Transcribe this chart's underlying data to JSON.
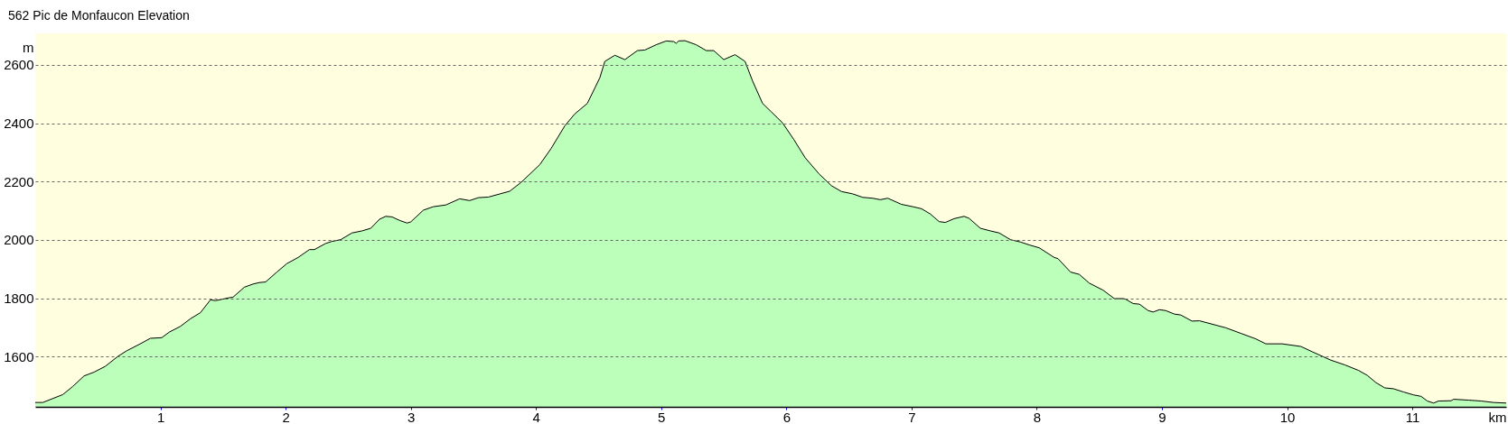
{
  "chart_data": {
    "type": "area",
    "title": "562 Pic de Monfaucon Elevation",
    "xlabel": "km",
    "ylabel": "m",
    "x": [
      0,
      0.06,
      0.22,
      0.3,
      0.39,
      0.47,
      0.56,
      0.66,
      0.73,
      0.83,
      0.92,
      1.01,
      1.07,
      1.16,
      1.24,
      1.32,
      1.4,
      1.44,
      1.55,
      1.58,
      1.67,
      1.74,
      1.79,
      1.84,
      1.93,
      2.01,
      2.1,
      2.19,
      2.23,
      2.32,
      2.37,
      2.44,
      2.53,
      2.61,
      2.68,
      2.75,
      2.8,
      2.85,
      2.91,
      2.97,
      3.0,
      3.1,
      3.18,
      3.28,
      3.39,
      3.47,
      3.54,
      3.62,
      3.79,
      3.88,
      4.03,
      4.12,
      4.23,
      4.31,
      4.41,
      4.51,
      4.55,
      4.63,
      4.71,
      4.81,
      4.87,
      4.96,
      5.04,
      5.1,
      5.12,
      5.14,
      5.19,
      5.28,
      5.36,
      5.42,
      5.5,
      5.59,
      5.67,
      5.73,
      5.81,
      5.88,
      5.97,
      6.06,
      6.15,
      6.26,
      6.36,
      6.44,
      6.53,
      6.61,
      6.69,
      6.75,
      6.81,
      6.92,
      7.01,
      7.08,
      7.15,
      7.22,
      7.27,
      7.34,
      7.42,
      7.46,
      7.55,
      7.63,
      7.7,
      7.79,
      7.87,
      7.94,
      8.02,
      8.14,
      8.17,
      8.27,
      8.34,
      8.42,
      8.53,
      8.62,
      8.69,
      8.71,
      8.77,
      8.82,
      8.89,
      8.93,
      8.98,
      9.03,
      9.1,
      9.15,
      9.24,
      9.3,
      9.44,
      9.51,
      9.63,
      9.75,
      9.83,
      9.96,
      10.11,
      10.2,
      10.35,
      10.46,
      10.57,
      10.64,
      10.71,
      10.78,
      10.85,
      10.93,
      11.01,
      11.07,
      11.12,
      11.17,
      11.21,
      11.31,
      11.33,
      11.45,
      11.55,
      11.65,
      11.75
    ],
    "series": [
      {
        "color": "#bbffbb",
        "values": [
          1443,
          1443,
          1470,
          1498,
          1534,
          1547,
          1567,
          1601,
          1620,
          1642,
          1663,
          1665,
          1684,
          1704,
          1730,
          1751,
          1795,
          1792,
          1802,
          1804,
          1838,
          1849,
          1854,
          1856,
          1890,
          1919,
          1940,
          1967,
          1967,
          1988,
          1995,
          2001,
          2024,
          2031,
          2040,
          2071,
          2081,
          2079,
          2067,
          2058,
          2062,
          2102,
          2114,
          2120,
          2141,
          2135,
          2145,
          2147,
          2167,
          2197,
          2258,
          2313,
          2391,
          2432,
          2468,
          2556,
          2612,
          2633,
          2618,
          2649,
          2651,
          2669,
          2682,
          2680,
          2674,
          2682,
          2683,
          2669,
          2649,
          2649,
          2618,
          2635,
          2612,
          2545,
          2468,
          2439,
          2401,
          2344,
          2282,
          2227,
          2186,
          2166,
          2158,
          2146,
          2143,
          2138,
          2143,
          2122,
          2114,
          2107,
          2089,
          2063,
          2060,
          2073,
          2081,
          2074,
          2040,
          2031,
          2024,
          2001,
          1993,
          1983,
          1973,
          1940,
          1936,
          1890,
          1882,
          1852,
          1828,
          1799,
          1799,
          1797,
          1782,
          1780,
          1758,
          1753,
          1761,
          1758,
          1746,
          1743,
          1722,
          1723,
          1707,
          1699,
          1680,
          1661,
          1644,
          1644,
          1635,
          1617,
          1588,
          1572,
          1553,
          1536,
          1511,
          1493,
          1490,
          1479,
          1469,
          1464,
          1448,
          1441,
          1448,
          1449,
          1454,
          1451,
          1448,
          1443,
          1441
        ]
      }
    ],
    "xlim": [
      0,
      11.75
    ],
    "xticks": [
      1,
      2,
      3,
      4,
      5,
      6,
      7,
      8,
      9,
      10,
      11
    ],
    "ylim": [
      1428,
      2708
    ],
    "yticks": [
      1600,
      1800,
      2000,
      2200,
      2400,
      2600
    ],
    "grid": "y"
  }
}
